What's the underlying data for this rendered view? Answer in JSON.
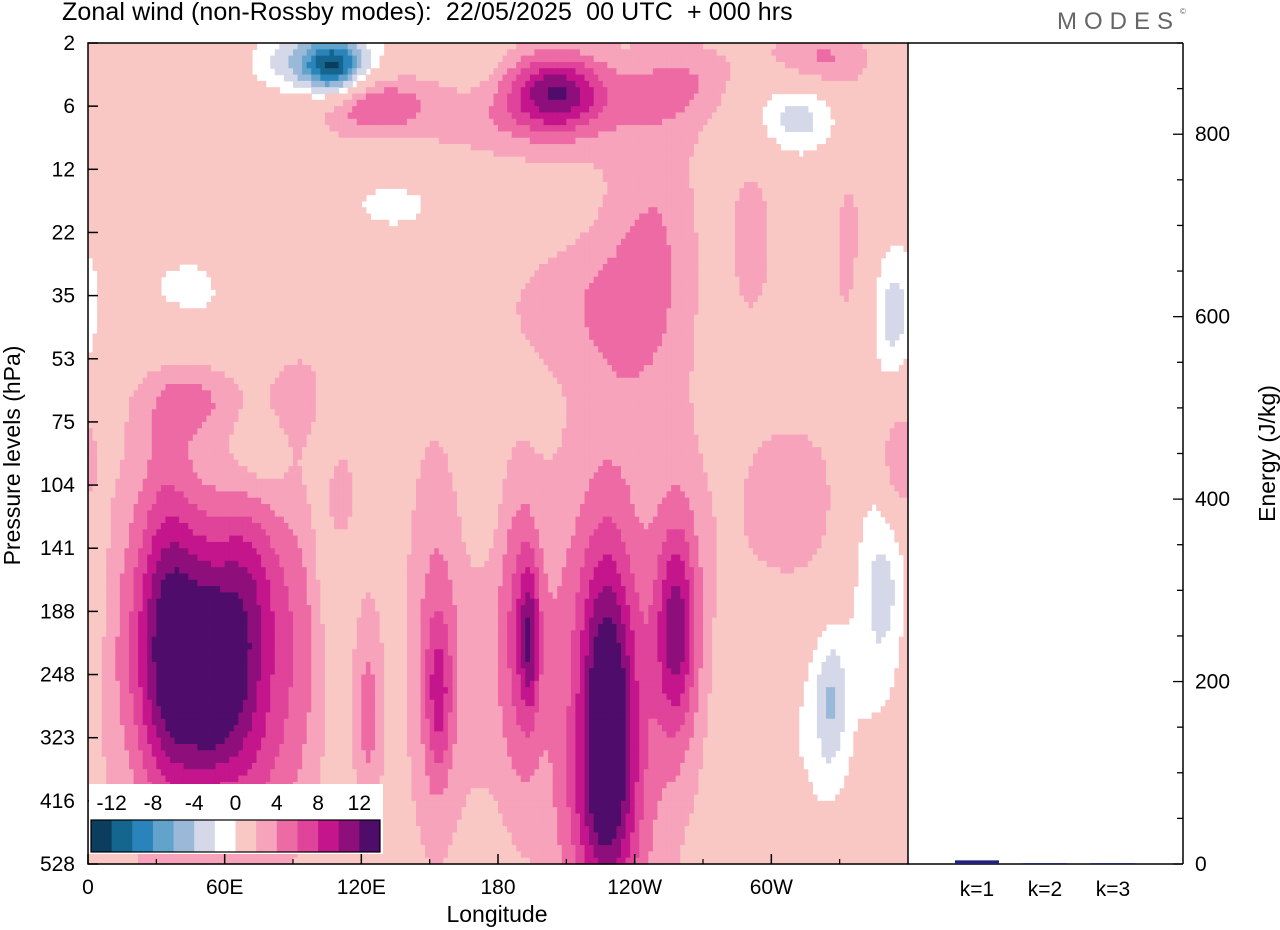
{
  "page": {
    "title": "Zonal wind (non-Rossby modes):  22/05/2025  00 UTC  + 000 hrs",
    "logo": "MODES",
    "logo_mark": "©"
  },
  "chart_data": [
    {
      "type": "heatmap",
      "title": "Zonal wind (non-Rossby modes):  22/05/2025  00 UTC  + 000 hrs",
      "xlabel": "Longitude",
      "ylabel": "Pressure levels (hPa)",
      "x_ticks": [
        "0",
        "60E",
        "120E",
        "180",
        "120W",
        "60W"
      ],
      "x_tick_degrees": [
        0,
        60,
        120,
        180,
        240,
        300
      ],
      "xlim_degrees": [
        0,
        360
      ],
      "y_ticks": [
        "2",
        "6",
        "12",
        "22",
        "35",
        "53",
        "75",
        "104",
        "141",
        "188",
        "248",
        "323",
        "416",
        "528"
      ],
      "colorbar": {
        "labels": [
          "-12",
          "-8",
          "-4",
          "0",
          "4",
          "8",
          "12"
        ],
        "levels": [
          -14,
          -12,
          -10,
          -8,
          -6,
          -4,
          -2,
          2,
          4,
          6,
          8,
          10,
          12,
          14
        ],
        "colors": [
          "#0b3d5e",
          "#15668f",
          "#2a84bc",
          "#62a3cc",
          "#9ab9d9",
          "#d4d8e8",
          "#ffffff",
          "#f9c8c5",
          "#f6a3bb",
          "#ee6aa5",
          "#e0439a",
          "#c5158c",
          "#8e0f7c",
          "#4f0c6b"
        ]
      },
      "blobs": [
        {
          "lon": 50,
          "lev": 9.8,
          "a": 13,
          "rx": 18,
          "ry": 1.7
        },
        {
          "lon": 56,
          "lev": 10.3,
          "a": 3,
          "rx": 9,
          "ry": 0.9
        },
        {
          "lon": 34,
          "lev": 9.2,
          "a": 5,
          "rx": 9,
          "ry": 2.2
        },
        {
          "lon": 72,
          "lev": 8.6,
          "a": 5,
          "rx": 10,
          "ry": 1.4
        },
        {
          "lon": 93,
          "lev": 9.5,
          "a": 4,
          "rx": 10,
          "ry": 2.2
        },
        {
          "lon": 75,
          "lev": 11.6,
          "a": 3,
          "rx": 11,
          "ry": 1.2
        },
        {
          "lon": 12,
          "lev": 9.3,
          "a": 2.5,
          "rx": 15,
          "ry": 2.6
        },
        {
          "lon": 109,
          "lev": 7.1,
          "a": 6,
          "rx": 5,
          "ry": 0.6
        },
        {
          "lon": 123,
          "lev": 10.6,
          "a": 4.5,
          "rx": 5,
          "ry": 1.4
        },
        {
          "lon": 177,
          "lev": 9.4,
          "a": 3,
          "rx": 22,
          "ry": 2.3
        },
        {
          "lon": 151,
          "lev": 9.8,
          "a": 3,
          "rx": 9,
          "ry": 2.8
        },
        {
          "lon": 154,
          "lev": 10.3,
          "a": 5,
          "rx": 4,
          "ry": 0.9
        },
        {
          "lon": 190,
          "lev": 9.4,
          "a": 4,
          "rx": 6,
          "ry": 1.6
        },
        {
          "lon": 194,
          "lev": 9.4,
          "a": 6,
          "rx": 3,
          "ry": 0.8
        },
        {
          "lon": 229,
          "lev": 10.8,
          "a": 6,
          "rx": 20,
          "ry": 3.3
        },
        {
          "lon": 229,
          "lev": 11.2,
          "a": 7.5,
          "rx": 8,
          "ry": 1.5
        },
        {
          "lon": 227,
          "lev": 9.5,
          "a": 4,
          "rx": 8,
          "ry": 1.5
        },
        {
          "lon": 258,
          "lev": 9.3,
          "a": 7,
          "rx": 6,
          "ry": 1.1
        },
        {
          "lon": 262,
          "lev": 9,
          "a": 3,
          "rx": 10,
          "ry": 2
        },
        {
          "lon": 300,
          "lev": 7.5,
          "a": 2.5,
          "rx": 16,
          "ry": 1.2
        },
        {
          "lon": 320,
          "lev": 7.8,
          "a": 2.5,
          "rx": 15,
          "ry": 1.5
        },
        {
          "lon": 318,
          "lev": 10.2,
          "a": -2.5,
          "rx": 18,
          "ry": 2
        },
        {
          "lon": 326,
          "lev": 10.4,
          "a": -4.5,
          "rx": 5,
          "ry": 0.8
        },
        {
          "lon": 350,
          "lev": 8.5,
          "a": -5.5,
          "rx": 10,
          "ry": 1.5
        },
        {
          "lon": 355,
          "lev": 6.7,
          "a": 5,
          "rx": 6,
          "ry": 0.7
        },
        {
          "lon": 353,
          "lev": 4.3,
          "a": -4.5,
          "rx": 7,
          "ry": 0.8
        },
        {
          "lon": 48,
          "lev": 5.6,
          "a": 4,
          "rx": 18,
          "ry": 0.5
        },
        {
          "lon": 98,
          "lev": 5.6,
          "a": 3.5,
          "rx": 17,
          "ry": 0.5
        },
        {
          "lon": 74,
          "lev": 6.2,
          "a": -2.5,
          "rx": 10,
          "ry": 0.8
        },
        {
          "lon": 38,
          "lev": 4,
          "a": -2.5,
          "rx": 28,
          "ry": 0.9
        },
        {
          "lon": 106,
          "lev": 6.5,
          "a": -4.5,
          "rx": 5,
          "ry": 1.4
        },
        {
          "lon": 212,
          "lev": 4.1,
          "a": 2.5,
          "rx": 26,
          "ry": 0.8
        },
        {
          "lon": 243,
          "lev": 4.4,
          "a": 2.5,
          "rx": 17,
          "ry": 1.4
        },
        {
          "lon": 250,
          "lev": 2.6,
          "a": 2.5,
          "rx": 14,
          "ry": 1.2
        },
        {
          "lon": 137,
          "lev": 2.5,
          "a": -2.5,
          "rx": 28,
          "ry": 0.6
        },
        {
          "lon": 172,
          "lev": 6.8,
          "a": -2.5,
          "rx": 6,
          "ry": 1.1
        },
        {
          "lon": 292,
          "lev": 3,
          "a": 2.5,
          "rx": 10,
          "ry": 1.5
        },
        {
          "lon": 334,
          "lev": 3.3,
          "a": 2.5,
          "rx": 8,
          "ry": 1.5
        },
        {
          "lon": 223,
          "lev": 12.3,
          "a": 2.5,
          "rx": 10,
          "ry": 1
        },
        {
          "lon": 100,
          "lev": 0.3,
          "a": -7,
          "rx": 28,
          "ry": 0.4
        },
        {
          "lon": 108,
          "lev": 0.4,
          "a": -10,
          "rx": 9,
          "ry": 0.3
        },
        {
          "lon": 185,
          "lev": 0.9,
          "a": 5,
          "rx": 45,
          "ry": 0.7
        },
        {
          "lon": 206,
          "lev": 0.8,
          "a": 8,
          "rx": 14,
          "ry": 0.4
        },
        {
          "lon": 122,
          "lev": 0.9,
          "a": 5,
          "rx": 16,
          "ry": 0.4
        },
        {
          "lon": 310,
          "lev": 1.1,
          "a": -5.5,
          "rx": 16,
          "ry": 0.5
        },
        {
          "lon": 320,
          "lev": 0.3,
          "a": 5,
          "rx": 16,
          "ry": 0.4
        },
        {
          "lon": 170,
          "lev": 0.5,
          "a": -3,
          "rx": 14,
          "ry": 0.5
        },
        {
          "lon": 60,
          "lev": 0.3,
          "a": 2.5,
          "rx": 18,
          "ry": 0.5
        },
        {
          "lon": 263,
          "lev": 0.6,
          "a": 3,
          "rx": 16,
          "ry": 0.5
        }
      ]
    },
    {
      "type": "bar",
      "ylabel": "Energy (J/kg)",
      "categories": [
        "k=1",
        "k=2",
        "k=3"
      ],
      "values": [
        4,
        1,
        1
      ],
      "ylim": [
        0,
        900
      ],
      "y_ticks": [
        "0",
        "200",
        "400",
        "600",
        "800"
      ],
      "y_tick_values": [
        0,
        200,
        400,
        600,
        800
      ],
      "bar_color": "#22227a"
    }
  ]
}
